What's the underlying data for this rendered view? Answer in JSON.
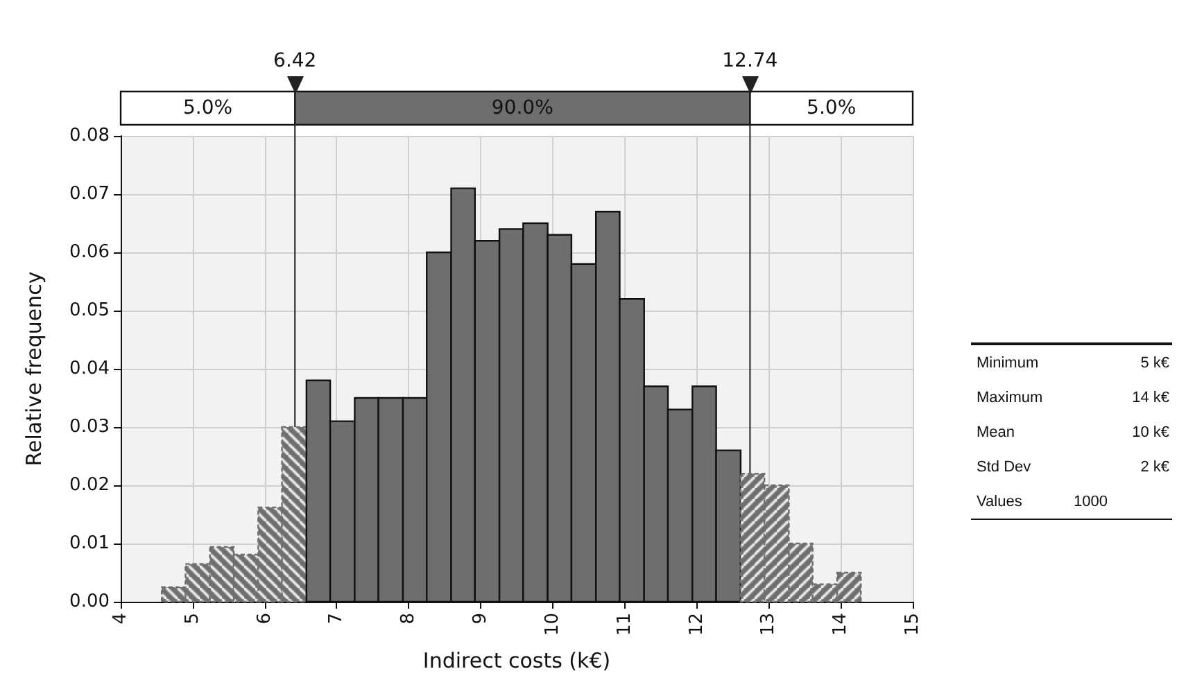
{
  "chart_data": [
    {
      "type": "histogram",
      "xlabel": "Indirect costs (k€)",
      "ylabel": "Relative frequency",
      "color": "#6e6e6e",
      "bins": [
        4.57,
        4.9,
        5.24,
        5.57,
        5.91,
        6.24,
        6.58,
        6.91,
        7.25,
        7.58,
        7.92,
        8.25,
        8.59,
        8.92,
        9.26,
        9.59,
        9.93,
        10.26,
        10.6,
        10.93,
        11.27,
        11.6,
        11.94,
        12.27,
        12.61,
        12.94,
        13.28,
        13.61,
        13.95,
        14.28
      ],
      "values": [
        0.0025,
        0.0065,
        0.0094,
        0.0081,
        0.0162,
        0.03,
        0.038,
        0.031,
        0.035,
        0.035,
        0.035,
        0.06,
        0.071,
        0.062,
        0.064,
        0.065,
        0.063,
        0.058,
        0.067,
        0.052,
        0.037,
        0.033,
        0.037,
        0.026,
        0.022,
        0.02,
        0.01,
        0.003,
        0.005
      ],
      "xlim": [
        4,
        15
      ],
      "xticks": [
        4,
        5,
        6,
        7,
        8,
        9,
        10,
        11,
        12,
        13,
        14,
        15
      ],
      "ylim": [
        0,
        0.08
      ],
      "yticks": [
        {
          "value": 0,
          "label": "0.00"
        },
        {
          "value": 0.01,
          "label": "0.01"
        },
        {
          "value": 0.02,
          "label": "0.02"
        },
        {
          "value": 0.03,
          "label": "0.03"
        },
        {
          "value": 0.04,
          "label": "0.04"
        },
        {
          "value": 0.05,
          "label": "0.05"
        },
        {
          "value": 0.06,
          "label": "0.06"
        },
        {
          "value": 0.07,
          "label": "0.07"
        },
        {
          "value": 0.08,
          "label": "0.08"
        }
      ],
      "grid": true,
      "ref_lines": [
        {
          "axis": "x",
          "value": 6.42,
          "label": "6.42"
        },
        {
          "axis": "x",
          "value": 12.74,
          "label": "12.74"
        }
      ],
      "annotations": [
        "5.0%",
        "90.0%",
        "5.0%"
      ]
    },
    {
      "type": "other",
      "annotations": [
        "Minimum",
        "5 k€",
        "Maximum",
        "14 k€",
        "Mean",
        "10 k€",
        "Std Dev",
        "2 k€",
        "Values",
        "1000"
      ]
    }
  ]
}
